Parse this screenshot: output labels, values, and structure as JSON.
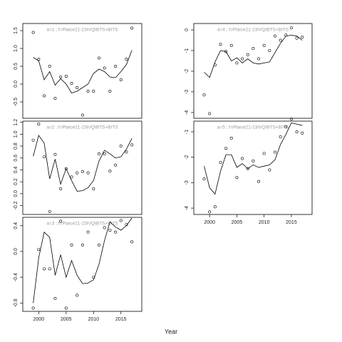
{
  "xlabel": "Year",
  "chart_data": [
    {
      "type": "scatter",
      "annotation": "a=1 ; f=Plaice21-23IVQIBTS+BITS",
      "x": [
        1999,
        2000,
        2001,
        2002,
        2003,
        2004,
        2005,
        2006,
        2007,
        2008,
        2009,
        2010,
        2011,
        2012,
        2013,
        2014,
        2015,
        2016,
        2017
      ],
      "xlim": [
        1997.1,
        2018.8
      ],
      "ylim": [
        -0.96,
        1.7
      ],
      "yticks": [
        -0.5,
        {
          "value": 0,
          "label": "0.0"
        },
        0.5,
        {
          "value": 1,
          "label": "1.0"
        },
        1.5
      ],
      "series": [
        {
          "mode": "markers",
          "color": "#000000",
          "values": [
            1.45,
            0.7,
            -0.33,
            0.5,
            -0.4,
            0.2,
            0.22,
            0.02,
            -0.1,
            -0.87,
            -0.2,
            -0.2,
            0.73,
            0.45,
            -0.2,
            0.5,
            0.12,
            0.7,
            1.57
          ]
        },
        {
          "mode": "line",
          "color": "#000000",
          "values": [
            0.75,
            0.65,
            0.12,
            0.35,
            -0.03,
            0.15,
            0.0,
            -0.25,
            -0.2,
            -0.1,
            0.0,
            0.3,
            0.42,
            0.35,
            0.2,
            0.18,
            0.35,
            0.55,
            0.95
          ]
        }
      ]
    },
    {
      "type": "scatter",
      "annotation": "a=2 ; f=Plaice21-23IVQIBTS+BITS",
      "x": [
        1999,
        2000,
        2001,
        2002,
        2003,
        2004,
        2005,
        2006,
        2007,
        2008,
        2009,
        2010,
        2011,
        2012,
        2013,
        2014,
        2015,
        2016,
        2017
      ],
      "xlim": [
        1997.1,
        2018.8
      ],
      "ylim": [
        -0.35,
        1.22
      ],
      "yticks": [
        -0.2,
        {
          "value": 0,
          "label": "0.0"
        },
        0.2,
        0.4,
        0.6,
        0.8,
        {
          "value": 1,
          "label": "1.0"
        },
        1.2
      ],
      "series": [
        {
          "mode": "markers",
          "color": "#000000",
          "values": [
            0.9,
            1.17,
            0.62,
            -0.3,
            0.66,
            0.08,
            0.42,
            0.28,
            0.35,
            0.37,
            0.35,
            0.08,
            0.67,
            0.67,
            0.38,
            0.48,
            0.8,
            0.7,
            0.82
          ]
        },
        {
          "mode": "line",
          "color": "#000000",
          "values": [
            0.63,
            0.98,
            0.85,
            0.25,
            0.58,
            0.16,
            0.42,
            0.22,
            0.04,
            0.05,
            0.1,
            0.22,
            0.55,
            0.73,
            0.67,
            0.6,
            0.62,
            0.75,
            0.93
          ]
        }
      ]
    },
    {
      "type": "scatter",
      "annotation": "a=3 ; f=Plaice21-23IVQIBTS+BITS",
      "x": [
        1999,
        2000,
        2001,
        2002,
        2003,
        2004,
        2005,
        2006,
        2007,
        2008,
        2009,
        2010,
        2011,
        2012,
        2013,
        2014,
        2015,
        2016,
        2017
      ],
      "xlim": [
        1997.1,
        2018.8
      ],
      "ylim": [
        -0.93,
        0.53
      ],
      "xticks": [
        2000,
        2005,
        2010,
        2015
      ],
      "yticks": [
        -0.8,
        -0.4,
        {
          "value": 0,
          "label": "0.0"
        },
        0.4
      ],
      "series": [
        {
          "mode": "markers",
          "color": "#000000",
          "values": [
            -0.88,
            0.03,
            -0.27,
            -0.27,
            -0.73,
            0.47,
            -0.88,
            0.1,
            -0.68,
            0.1,
            0.3,
            -0.4,
            0.1,
            0.37,
            0.33,
            0.3,
            0.48,
            0.42,
            0.15
          ]
        },
        {
          "mode": "line",
          "color": "#000000",
          "values": [
            -0.8,
            -0.1,
            0.3,
            0.22,
            -0.37,
            -0.05,
            -0.4,
            -0.14,
            -0.37,
            -0.5,
            -0.49,
            -0.44,
            -0.2,
            0.17,
            0.46,
            0.38,
            0.33,
            0.4,
            0.52
          ]
        }
      ]
    },
    {
      "type": "scatter",
      "annotation": "a=4 ; f=Plaice21-23IVQIBTS+BITS",
      "x": [
        1999,
        2000,
        2001,
        2002,
        2003,
        2004,
        2005,
        2006,
        2007,
        2008,
        2009,
        2010,
        2011,
        2012,
        2013,
        2014,
        2015,
        2016,
        2017
      ],
      "xlim": [
        1997.1,
        2018.8
      ],
      "ylim": [
        -4.28,
        0.31
      ],
      "yticks": [
        -4,
        -3,
        -2,
        -1,
        0
      ],
      "series": [
        {
          "mode": "markers",
          "color": "#000000",
          "values": [
            -3.15,
            -4.05,
            -1.7,
            -0.7,
            -1.05,
            -0.75,
            -1.6,
            -1.4,
            -1.2,
            -0.9,
            -1.4,
            -0.75,
            -1.0,
            -0.3,
            -0.5,
            -0.25,
            0.1,
            -0.4,
            -0.35
          ]
        },
        {
          "mode": "line",
          "color": "#000000",
          "values": [
            -2.05,
            -2.3,
            -1.55,
            -1.0,
            -1.05,
            -1.5,
            -1.35,
            -1.6,
            -1.4,
            -1.6,
            -1.65,
            -1.6,
            -1.55,
            -1.1,
            -0.65,
            -0.3,
            -0.25,
            -0.3,
            -0.5
          ]
        }
      ]
    },
    {
      "type": "scatter",
      "annotation": "a=5 ; f=Plaice21-23IVQIBTS+BITS",
      "x": [
        1999,
        2000,
        2001,
        2002,
        2003,
        2004,
        2005,
        2006,
        2007,
        2008,
        2009,
        2010,
        2011,
        2012,
        2013,
        2014,
        2015,
        2016,
        2017
      ],
      "xlim": [
        1997.1,
        2018.8
      ],
      "ylim": [
        -4.25,
        -0.58
      ],
      "xticks": [
        2000,
        2005,
        2010,
        2015
      ],
      "yticks": [
        -4,
        -3,
        -2,
        -1
      ],
      "series": [
        {
          "mode": "markers",
          "color": "#000000",
          "values": [
            -2.85,
            -4.15,
            -3.95,
            -2.2,
            -1.65,
            -1.25,
            -2.8,
            -2.05,
            -2.45,
            -2.15,
            -2.95,
            -1.85,
            -2.5,
            -1.8,
            -1.2,
            -0.8,
            -0.5,
            -1.0,
            -1.05
          ]
        },
        {
          "mode": "line",
          "color": "#000000",
          "values": [
            -2.35,
            -3.2,
            -3.45,
            -2.55,
            -1.9,
            -1.9,
            -2.4,
            -2.25,
            -2.45,
            -2.3,
            -2.4,
            -2.35,
            -2.3,
            -2.1,
            -1.5,
            -1.1,
            -0.65,
            -0.7,
            -0.75
          ]
        }
      ]
    }
  ]
}
